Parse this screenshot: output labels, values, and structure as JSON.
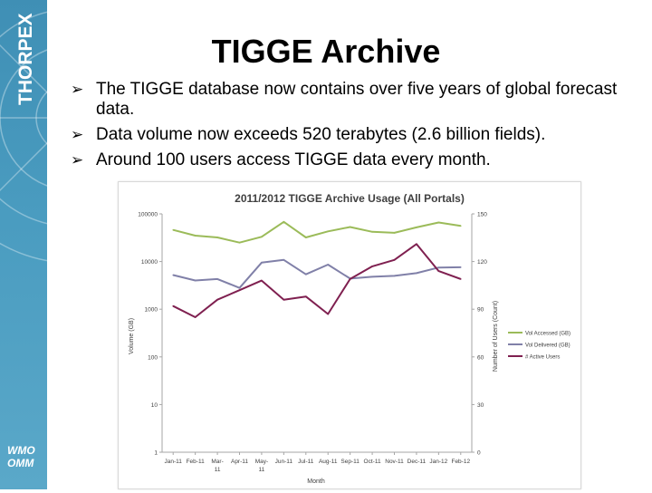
{
  "sidebar": {
    "logo_text": "THORPEX",
    "wmo_line1": "WMO",
    "wmo_line2": "OMM"
  },
  "title": "TIGGE Archive",
  "bullets": [
    "The TIGGE database now contains over five years of global forecast data.",
    "Data volume now exceeds 520 terabytes (2.6 billion fields).",
    "Around 100 users access TIGGE data every month."
  ],
  "chart_data": {
    "type": "line",
    "title": "2011/2012 TIGGE Archive Usage (All Portals)",
    "xlabel": "Month",
    "ylabel_left": "Volume (GB)",
    "ylabel_right": "Number of Users (Count)",
    "categories": [
      "Jan-11",
      "Feb-11",
      "Mar-11",
      "Apr-11",
      "May-11",
      "Jun-11",
      "Jul-11",
      "Aug-11",
      "Sep-11",
      "Oct-11",
      "Nov-11",
      "Dec-11",
      "Jan-12",
      "Feb-12"
    ],
    "y_left_scale": "log",
    "y_left_ticks": [
      "1",
      "10",
      "100",
      "1000",
      "10000",
      "100000"
    ],
    "y_right_ticks": [
      "0",
      "30",
      "60",
      "90",
      "120",
      "150"
    ],
    "ylim_left": [
      1,
      100000
    ],
    "ylim_right": [
      0,
      150
    ],
    "grid": false,
    "legend_position": "right",
    "series": [
      {
        "name": "Vol Accessed (GB)",
        "axis": "left",
        "color": "#9bbb59",
        "values": [
          46000,
          35000,
          32000,
          25000,
          33000,
          68000,
          32000,
          43000,
          53000,
          42000,
          40000,
          52000,
          66000,
          56000
        ]
      },
      {
        "name": "Vol Delivered (GB)",
        "axis": "left",
        "color": "#8080a8",
        "values": [
          5200,
          4000,
          4300,
          2800,
          9500,
          10800,
          5400,
          8600,
          4400,
          4800,
          5000,
          5700,
          7500,
          7600
        ]
      },
      {
        "name": "# Active Users",
        "axis": "right",
        "color": "#7f2050",
        "values": [
          92,
          85,
          96,
          102,
          108,
          96,
          98,
          87,
          109,
          117,
          121,
          131,
          114,
          109
        ]
      }
    ]
  }
}
